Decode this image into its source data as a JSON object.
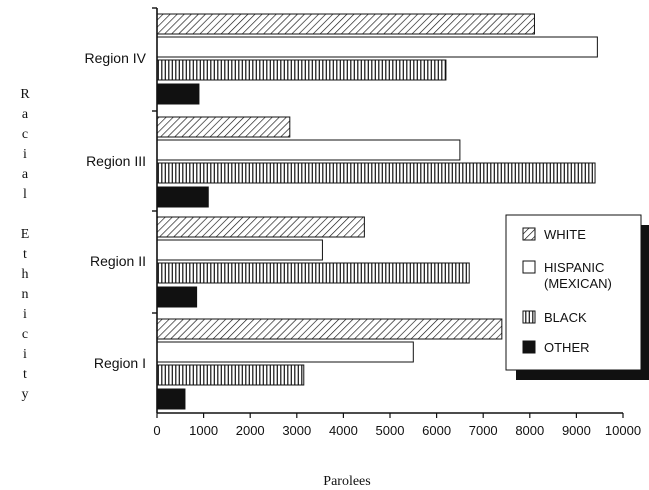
{
  "chart_data": {
    "type": "bar",
    "orientation": "horizontal",
    "categories": [
      "Region IV",
      "Region III",
      "Region II",
      "Region I"
    ],
    "series": [
      {
        "name": "WHITE",
        "pattern": "diagonal-hatch",
        "values": [
          8100,
          2850,
          4450,
          7400
        ]
      },
      {
        "name": "HISPANIC (MEXICAN)",
        "pattern": "white",
        "values": [
          9450,
          6500,
          3550,
          5500
        ]
      },
      {
        "name": "BLACK",
        "pattern": "vertical-lines",
        "values": [
          6200,
          9400,
          6700,
          3150
        ]
      },
      {
        "name": "OTHER",
        "pattern": "solid",
        "values": [
          900,
          1100,
          850,
          600
        ]
      }
    ],
    "legend_lines": [
      [
        "WHITE"
      ],
      [
        "HISPANIC",
        "(MEXICAN)"
      ],
      [
        "BLACK"
      ],
      [
        "OTHER"
      ]
    ],
    "xlabel": "Parolees",
    "ylabel": "Racial Ethnicity",
    "ylabel_letters": [
      "R",
      "a",
      "c",
      "i",
      "a",
      "l",
      "",
      "E",
      "t",
      "h",
      "n",
      "i",
      "c",
      "i",
      "t",
      "y"
    ],
    "xlim": [
      0,
      10000
    ],
    "xticks": [
      0,
      1000,
      2000,
      3000,
      4000,
      5000,
      6000,
      7000,
      8000,
      9000,
      10000
    ],
    "grid": false,
    "legend_position": "right"
  }
}
